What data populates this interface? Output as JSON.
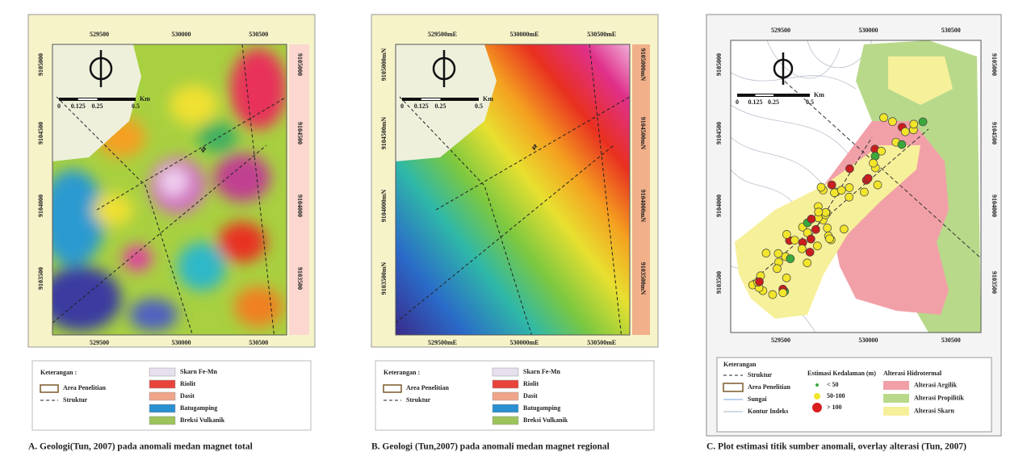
{
  "panels": [
    {
      "caption": "A. Geologi(Tun, 2007) pada anomali medan magnet total",
      "x_labels": [
        "529500",
        "530000",
        "530500"
      ],
      "y_labels": [
        "9105000",
        "9104500",
        "9104000",
        "9103500"
      ],
      "scale_labels": [
        "0",
        "0.125",
        "0.25",
        "0.5"
      ],
      "scale_unit": "Km",
      "legend": {
        "title": "Keterangan :",
        "area": "Area Penelitian",
        "structure": "Struktur",
        "units": [
          {
            "label": "Skarn Fe-Mn",
            "color": "#e6e0ee"
          },
          {
            "label": "Riolit",
            "color": "#e8433a"
          },
          {
            "label": "Dasit",
            "color": "#f0a58a"
          },
          {
            "label": "Batugamping",
            "color": "#2a8fd0"
          },
          {
            "label": "Breksi Vulkanik",
            "color": "#9cc45a"
          }
        ]
      }
    },
    {
      "caption": "B. Geologi (Tun,2007) pada anomali medan magnet regional",
      "x_labels": [
        "529500mE",
        "530000mE",
        "530500mE"
      ],
      "y_labels": [
        "9105000mN",
        "9104500mN",
        "9104000mN",
        "9103500mN"
      ],
      "scale_labels": [
        "0",
        "0.125",
        "0.25",
        "0.5"
      ],
      "scale_unit": "Km",
      "legend": {
        "title": "Keterangan :",
        "area": "Area Penelitian",
        "structure": "Struktur",
        "units": [
          {
            "label": "Skarn Fe-Mn",
            "color": "#e6e0ee"
          },
          {
            "label": "Riolit",
            "color": "#e8433a"
          },
          {
            "label": "Dasit",
            "color": "#f0a58a"
          },
          {
            "label": "Batugamping",
            "color": "#2a8fd0"
          },
          {
            "label": "Breksi Vulkanik",
            "color": "#9cc45a"
          }
        ]
      }
    },
    {
      "caption": "C. Plot estimasi titik sumber anomali, overlay alterasi (Tun, 2007)",
      "x_labels": [
        "529500",
        "530000",
        "530500"
      ],
      "y_labels": [
        "9105000",
        "9104500",
        "9104000",
        "9103500"
      ],
      "scale_labels": [
        "0",
        "0.125",
        "0.25",
        "0.5"
      ],
      "scale_unit": "Km",
      "legend": {
        "title": "Keterangan",
        "lines": [
          "Struktur",
          "Area Penelitian",
          "Sungai",
          "Kontur Indeks"
        ],
        "depth_title": "Estimasi Kedalaman (m)",
        "depth": [
          {
            "label": "< 50",
            "color": "#3aa83a"
          },
          {
            "label": "50-100",
            "color": "#f2e52a"
          },
          {
            "label": "> 100",
            "color": "#d81e1e"
          }
        ],
        "alteration_title": "Alterasi Hidrotermal",
        "alteration": [
          {
            "label": "Alterasi Argilik",
            "color": "#f2a0a8"
          },
          {
            "label": "Alterasi Propilitik",
            "color": "#b8d98a"
          },
          {
            "label": "Alterasi Skarn",
            "color": "#f7f09a"
          }
        ]
      }
    }
  ]
}
